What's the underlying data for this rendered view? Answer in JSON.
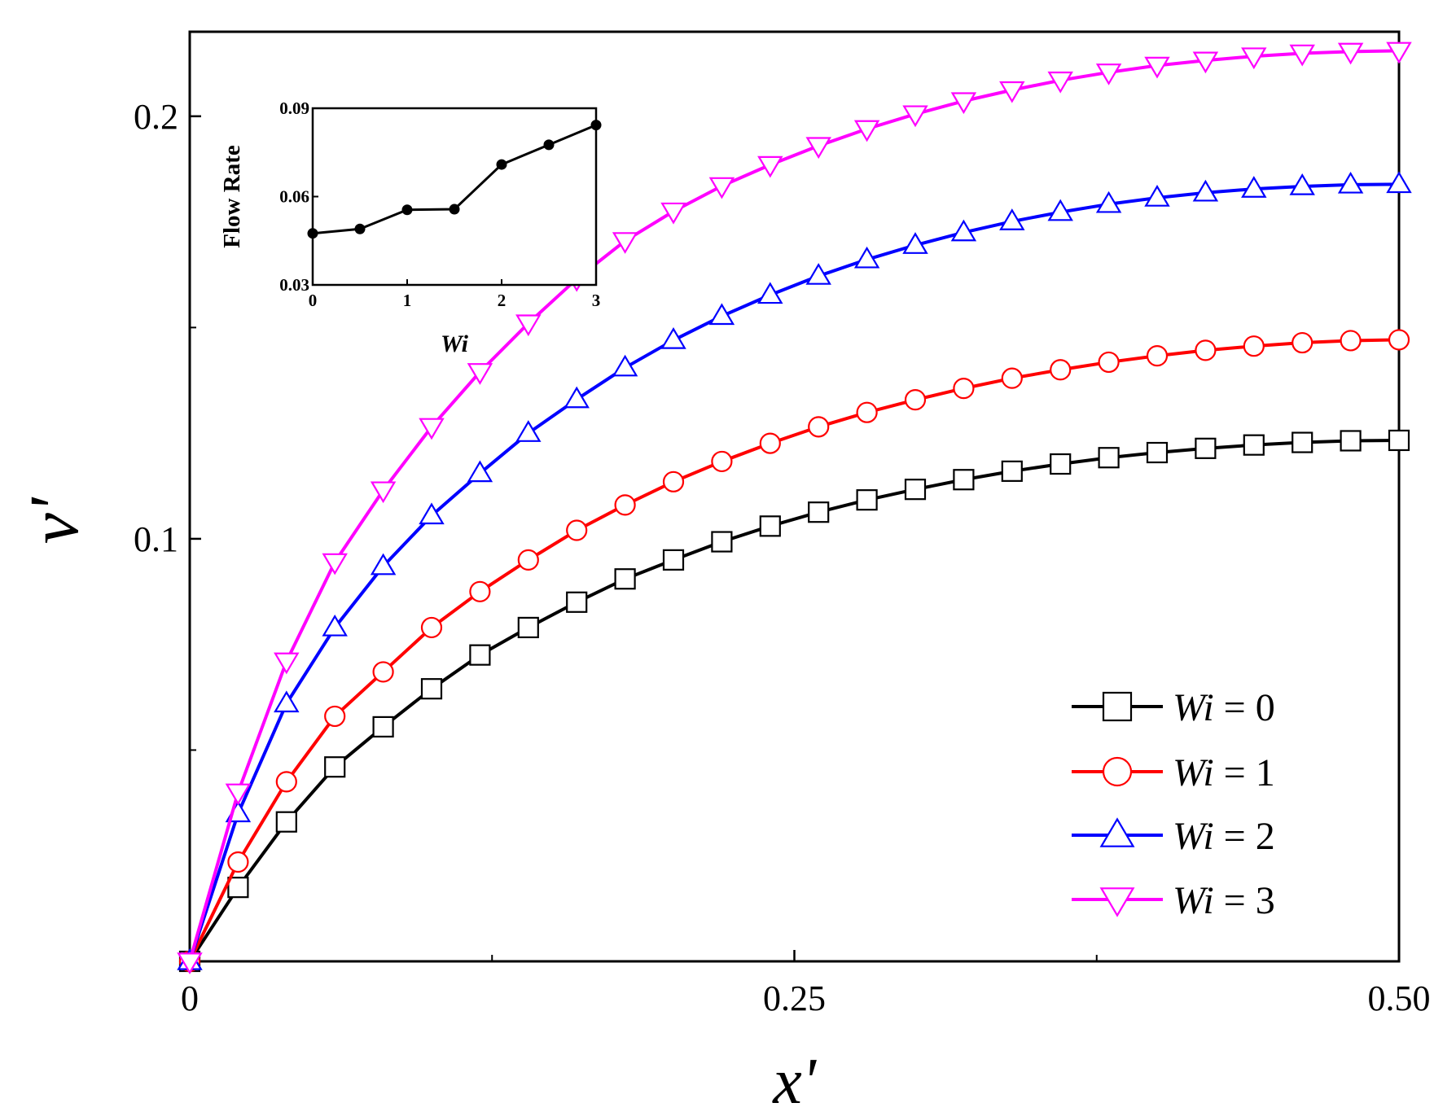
{
  "chart_data": [
    {
      "type": "line",
      "title": "",
      "xlabel": "x'",
      "ylabel": "v'",
      "xlim": [
        0,
        0.5
      ],
      "ylim": [
        0,
        0.22
      ],
      "x_ticks": [
        0,
        0.25,
        0.5
      ],
      "x_tick_labels": [
        "0",
        "0.25",
        "0.50"
      ],
      "x_minor_ticks": [
        0.125,
        0.375
      ],
      "y_ticks": [
        0.1,
        0.2
      ],
      "y_tick_labels": [
        "0.1",
        "0.2"
      ],
      "y_minor_ticks": [
        0.05,
        0.15
      ],
      "grid": false,
      "legend_position": "bottom-right",
      "x": [
        0,
        0.02,
        0.04,
        0.06,
        0.08,
        0.1,
        0.12,
        0.14,
        0.16,
        0.18,
        0.2,
        0.22,
        0.24,
        0.26,
        0.28,
        0.3,
        0.32,
        0.34,
        0.36,
        0.38,
        0.4,
        0.42,
        0.44,
        0.46,
        0.48,
        0.5
      ],
      "series": [
        {
          "name": "Wi = 0",
          "label_var": "Wi",
          "label_value": "= 0",
          "color": "#000000",
          "marker": "square",
          "values": [
            0,
            0.0175,
            0.033,
            0.046,
            0.0555,
            0.0645,
            0.0725,
            0.079,
            0.085,
            0.0905,
            0.095,
            0.0993,
            0.103,
            0.1063,
            0.1092,
            0.1117,
            0.114,
            0.116,
            0.1177,
            0.1192,
            0.1204,
            0.1214,
            0.1222,
            0.1228,
            0.1232,
            0.1233
          ]
        },
        {
          "name": "Wi = 1",
          "label_var": "Wi",
          "label_value": "= 1",
          "color": "#ff0000",
          "marker": "circle",
          "values": [
            0,
            0.0235,
            0.0425,
            0.058,
            0.0685,
            0.079,
            0.0875,
            0.095,
            0.102,
            0.108,
            0.1135,
            0.1183,
            0.1226,
            0.1265,
            0.1299,
            0.1329,
            0.1356,
            0.138,
            0.14,
            0.1418,
            0.1433,
            0.1446,
            0.1456,
            0.1464,
            0.1469,
            0.1471
          ]
        },
        {
          "name": "Wi = 2",
          "label_var": "Wi",
          "label_value": "= 2",
          "color": "#0000ff",
          "marker": "triangle-up",
          "values": [
            0,
            0.035,
            0.061,
            0.079,
            0.0935,
            0.1055,
            0.1155,
            0.125,
            0.133,
            0.1405,
            0.147,
            0.1527,
            0.1577,
            0.1622,
            0.1661,
            0.1695,
            0.1725,
            0.1751,
            0.1773,
            0.1792,
            0.1807,
            0.1819,
            0.1828,
            0.1834,
            0.1838,
            0.1839
          ]
        },
        {
          "name": "Wi = 3",
          "label_var": "Wi",
          "label_value": "= 3",
          "color": "#ff00ff",
          "marker": "triangle-down",
          "values": [
            0,
            0.04,
            0.071,
            0.0945,
            0.1115,
            0.1265,
            0.1395,
            0.151,
            0.1615,
            0.1705,
            0.1775,
            0.1835,
            0.1885,
            0.193,
            0.197,
            0.2005,
            0.2036,
            0.2062,
            0.2085,
            0.2104,
            0.212,
            0.2132,
            0.2142,
            0.2149,
            0.2153,
            0.2155
          ]
        }
      ]
    },
    {
      "type": "line",
      "title": "",
      "xlabel": "Wi",
      "ylabel": "Flow Rate",
      "xlim": [
        0,
        3
      ],
      "ylim": [
        0.03,
        0.09
      ],
      "x_ticks": [
        0,
        1,
        2,
        3
      ],
      "x_tick_labels": [
        "0",
        "1",
        "2",
        "3"
      ],
      "y_ticks": [
        0.03,
        0.06,
        0.09
      ],
      "y_tick_labels": [
        "0.03",
        "0.06",
        "0.09"
      ],
      "grid": false,
      "series": [
        {
          "name": "Flow Rate",
          "color": "#000000",
          "marker": "filled-circle",
          "x": [
            0,
            0.5,
            1,
            1.5,
            2,
            2.5,
            3
          ],
          "values": [
            0.0475,
            0.049,
            0.0555,
            0.0557,
            0.0709,
            0.0776,
            0.0843
          ]
        }
      ]
    }
  ]
}
